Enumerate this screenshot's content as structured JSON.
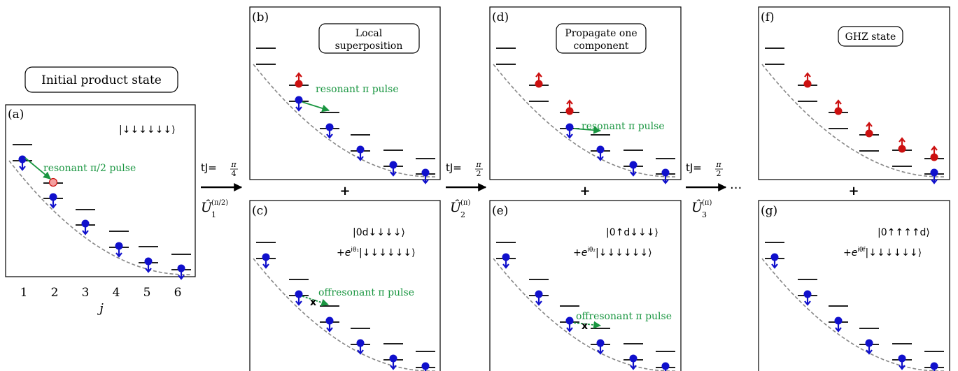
{
  "colors": {
    "spin_down": "#1010cc",
    "spin_up": "#cc1010",
    "pulse": "#1a9641",
    "parabola": "#888888",
    "ghost_marker": "#f4a0a0"
  },
  "initial_label": "Initial product state",
  "panels": {
    "a": {
      "tag": "(a)",
      "ket": "|↓↓↓↓↓↓⟩",
      "pulse": "resonant π/2 pulse",
      "x_ticks": [
        "1",
        "2",
        "3",
        "4",
        "5",
        "6"
      ],
      "x_label": "j"
    },
    "b": {
      "tag": "(b)",
      "box_line1": "Local",
      "box_line2": "superposition",
      "pulse": "resonant π pulse"
    },
    "c": {
      "tag": "(c)",
      "ket1": "|0d↓↓↓↓⟩",
      "ket2_prefix": "+e",
      "ket2_exp": "iθ₁",
      "ket2_rest": "|↓↓↓↓↓↓⟩",
      "pulse": "offresonant π pulse",
      "cross": "x"
    },
    "d": {
      "tag": "(d)",
      "box_line1": "Propagate one",
      "box_line2": "component",
      "pulse": "resonant π pulse"
    },
    "e": {
      "tag": "(e)",
      "ket1": "|0↑d↓↓↓⟩",
      "ket2_prefix": "+e",
      "ket2_exp": "iθ₂",
      "ket2_rest": "|↓↓↓↓↓↓⟩",
      "pulse": "offresonant π pulse",
      "cross": "x"
    },
    "f": {
      "tag": "(f)",
      "box_line1": "GHZ state"
    },
    "g": {
      "tag": "(g)",
      "ket1": "|0↑↑↑↑d⟩",
      "ket2_prefix": "+e",
      "ket2_exp": "iθf",
      "ket2_rest": "|↓↓↓↓↓↓⟩"
    }
  },
  "steps": [
    {
      "time_label": "tJ=",
      "frac_num": "π",
      "frac_den": "4",
      "op": "Û",
      "op_sub": "1",
      "op_sup": "(π/2)"
    },
    {
      "time_label": "tJ=",
      "frac_num": "π",
      "frac_den": "2",
      "op": "Û",
      "op_sub": "2",
      "op_sup": "(π)"
    },
    {
      "time_label": "tJ=",
      "frac_num": "π",
      "frac_den": "2",
      "op": "Û",
      "op_sub": "3",
      "op_sup": "(π)"
    }
  ],
  "plus": "+",
  "ellipsis": "···"
}
